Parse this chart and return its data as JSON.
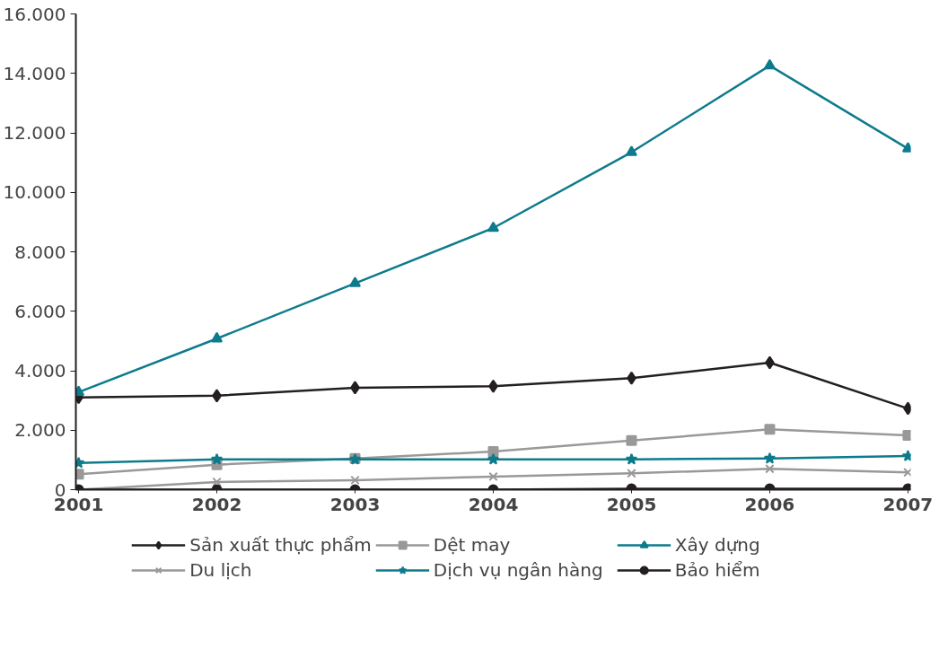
{
  "chart_data": {
    "type": "line",
    "categories": [
      "2001",
      "2002",
      "2003",
      "2004",
      "2005",
      "2006",
      "2007"
    ],
    "ylim": [
      0,
      16000
    ],
    "yticks": [
      {
        "value": 0,
        "label": "0"
      },
      {
        "value": 2000,
        "label": "2.000"
      },
      {
        "value": 4000,
        "label": "4.000"
      },
      {
        "value": 6000,
        "label": "6.000"
      },
      {
        "value": 8000,
        "label": "8.000"
      },
      {
        "value": 10000,
        "label": "10.000"
      },
      {
        "value": 12000,
        "label": "12.000"
      },
      {
        "value": 14000,
        "label": "14.000"
      },
      {
        "value": 16000,
        "label": "16.000"
      }
    ],
    "grid": false,
    "legend": "bottom",
    "series": [
      {
        "name": "Sản xuất thực phẩm",
        "color": "#231f20",
        "marker": "diamond",
        "values": [
          3100,
          3160,
          3430,
          3480,
          3750,
          4270,
          2730
        ]
      },
      {
        "name": "Dệt may",
        "color": "#999999",
        "marker": "square",
        "values": [
          520,
          840,
          1050,
          1280,
          1650,
          2030,
          1830
        ]
      },
      {
        "name": "Xây dựng",
        "color": "#0e7b8c",
        "marker": "triangle",
        "values": [
          3280,
          5080,
          6940,
          8800,
          11350,
          14260,
          11470
        ]
      },
      {
        "name": "Du lịch",
        "color": "#999999",
        "marker": "cross",
        "values": [
          0,
          260,
          320,
          440,
          550,
          700,
          580
        ]
      },
      {
        "name": "Dịch vụ ngân hàng",
        "color": "#0e7b8c",
        "marker": "star",
        "values": [
          900,
          1020,
          1020,
          1020,
          1020,
          1050,
          1130
        ]
      },
      {
        "name": "Bảo hiểm",
        "color": "#231f20",
        "marker": "circle",
        "values": [
          0,
          0,
          0,
          0,
          30,
          30,
          30
        ]
      }
    ]
  }
}
